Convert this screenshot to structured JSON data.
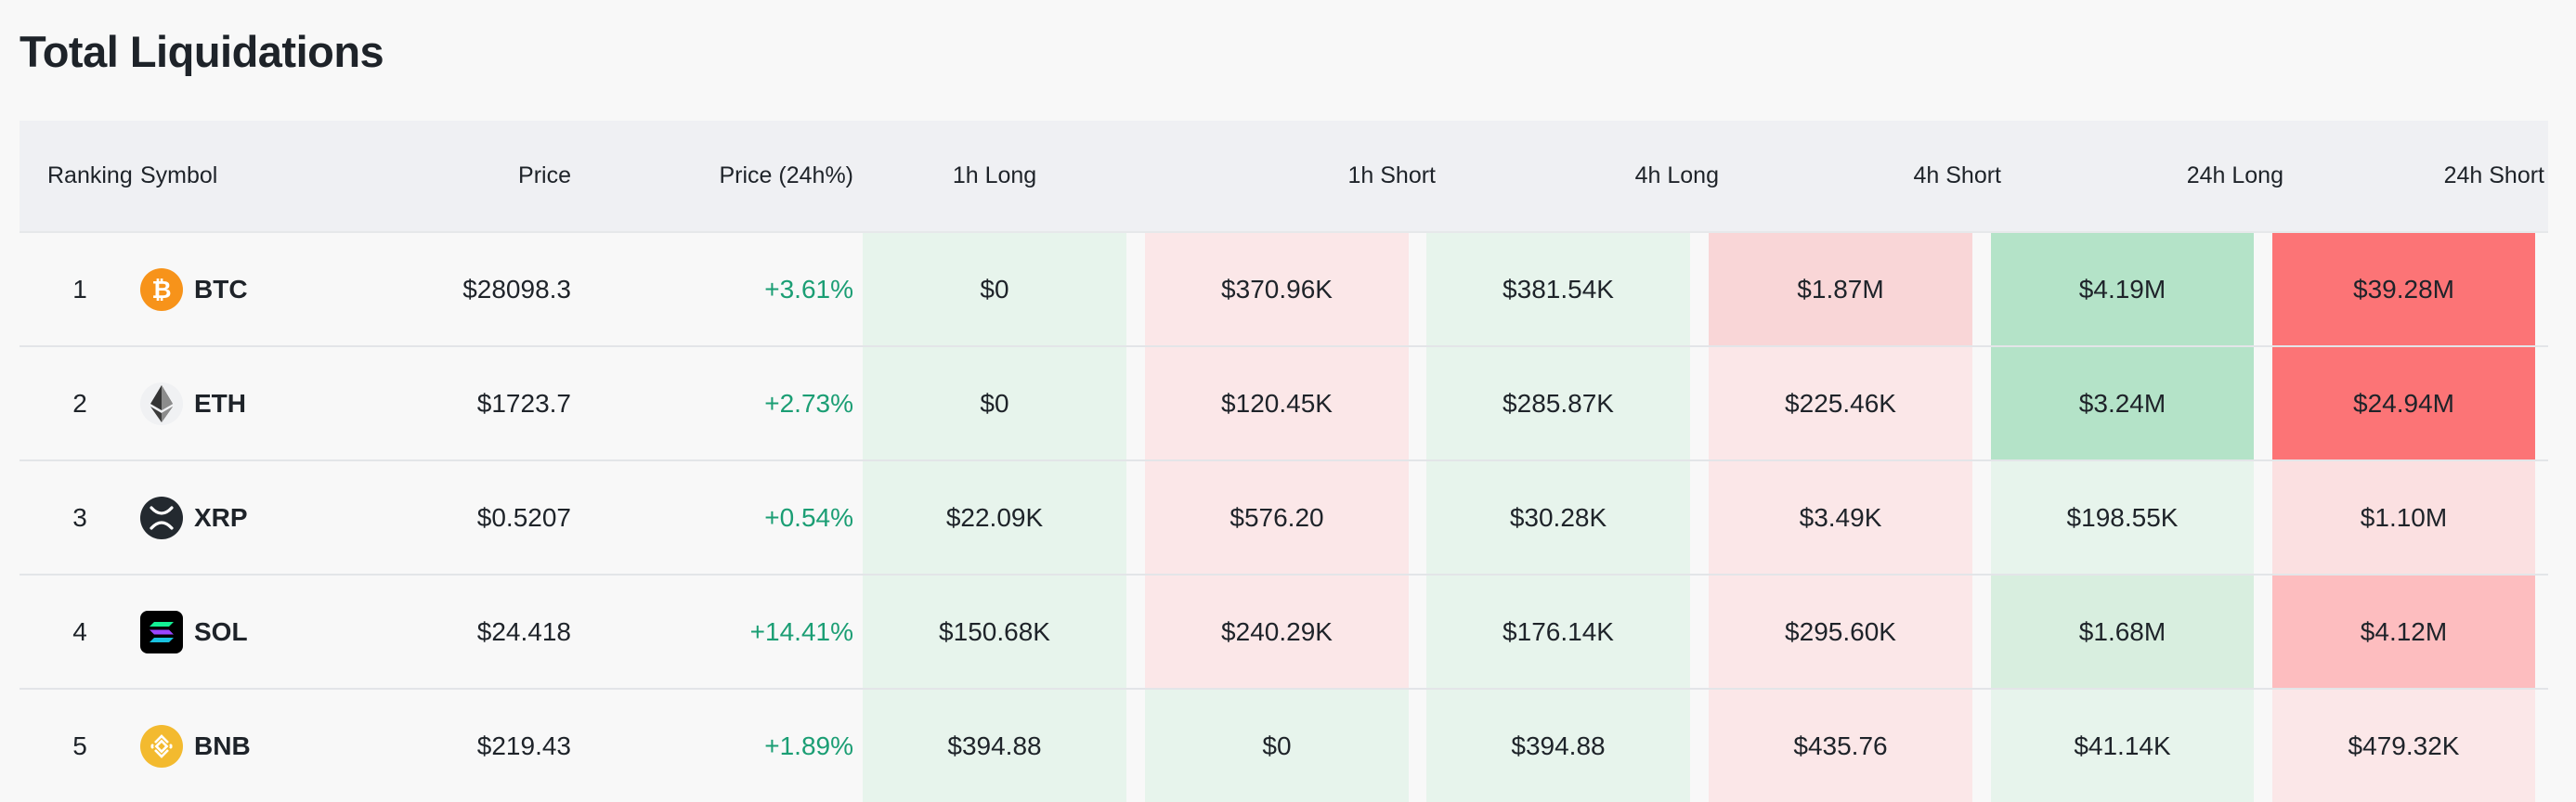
{
  "title": "Total Liquidations",
  "headers": {
    "ranking": "Ranking",
    "symbol": "Symbol",
    "price": "Price",
    "change": "Price (24h%)",
    "h1_long": "1h Long",
    "h1_short": "1h Short",
    "h4_long": "4h Long",
    "h4_short": "4h Short",
    "h24_long": "24h Long",
    "h24_short": "24h Short"
  },
  "colors": {
    "positive_text": "#1b9e74",
    "long_light": "#e7f4ec",
    "long_mid": "#d8eedf",
    "long_strong": "#b4e3c8",
    "short_light": "#fbe7e8",
    "short_mid": "#f9d6d7",
    "short_strong": "#fdbdbf",
    "short_max": "#fc7476"
  },
  "rows": [
    {
      "rank": "1",
      "symbol": "BTC",
      "icon": "bitcoin-icon",
      "price": "$28098.3",
      "change": "+3.61%",
      "h1_long": "$0",
      "h1_short": "$370.96K",
      "h4_long": "$381.54K",
      "h4_short": "$1.87M",
      "h24_long": "$4.19M",
      "h24_short": "$39.28M"
    },
    {
      "rank": "2",
      "symbol": "ETH",
      "icon": "ethereum-icon",
      "price": "$1723.7",
      "change": "+2.73%",
      "h1_long": "$0",
      "h1_short": "$120.45K",
      "h4_long": "$285.87K",
      "h4_short": "$225.46K",
      "h24_long": "$3.24M",
      "h24_short": "$24.94M"
    },
    {
      "rank": "3",
      "symbol": "XRP",
      "icon": "xrp-icon",
      "price": "$0.5207",
      "change": "+0.54%",
      "h1_long": "$22.09K",
      "h1_short": "$576.20",
      "h4_long": "$30.28K",
      "h4_short": "$3.49K",
      "h24_long": "$198.55K",
      "h24_short": "$1.10M"
    },
    {
      "rank": "4",
      "symbol": "SOL",
      "icon": "solana-icon",
      "price": "$24.418",
      "change": "+14.41%",
      "h1_long": "$150.68K",
      "h1_short": "$240.29K",
      "h4_long": "$176.14K",
      "h4_short": "$295.60K",
      "h24_long": "$1.68M",
      "h24_short": "$4.12M"
    },
    {
      "rank": "5",
      "symbol": "BNB",
      "icon": "bnb-icon",
      "price": "$219.43",
      "change": "+1.89%",
      "h1_long": "$394.88",
      "h1_short": "$0",
      "h4_long": "$394.88",
      "h4_short": "$435.76",
      "h24_long": "$41.14K",
      "h24_short": "$479.32K"
    }
  ]
}
